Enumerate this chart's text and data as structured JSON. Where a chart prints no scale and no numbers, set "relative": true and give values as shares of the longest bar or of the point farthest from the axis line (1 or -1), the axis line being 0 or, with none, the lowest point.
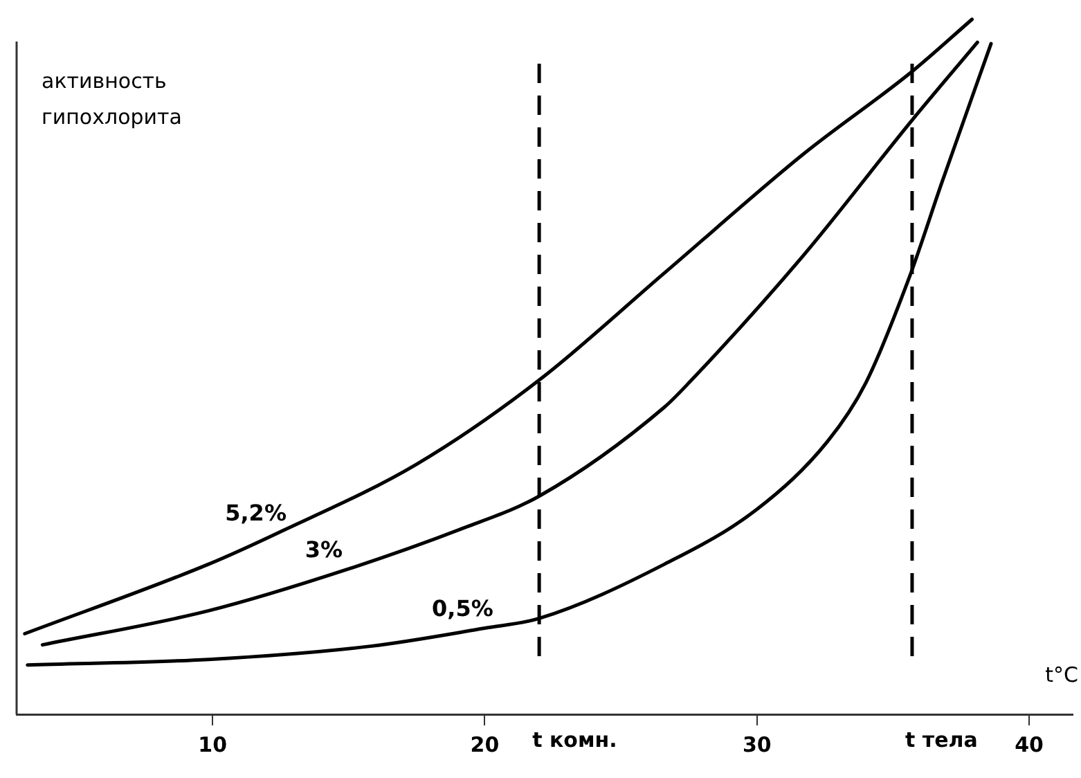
{
  "chart_data": {
    "type": "line",
    "relative": true,
    "xlabel": "t°C",
    "ylabel": "активность гипохлорита",
    "xlim": [
      2.8,
      41.6
    ],
    "xticks": [
      10,
      20,
      30,
      40
    ],
    "grid": false,
    "legend": false,
    "marker": "none",
    "line_style": "solid",
    "series": [
      {
        "name": "5,2%",
        "color": "#000000",
        "x": [
          3.1,
          9.85,
          12.4,
          17.5,
          22.0,
          26.6,
          31.7,
          35.7,
          37.9
        ],
        "values": [
          0.116,
          0.216,
          0.261,
          0.36,
          0.481,
          0.635,
          0.806,
          0.925,
          1.0
        ]
      },
      {
        "name": "3%",
        "color": "#000000",
        "x": [
          3.75,
          9.85,
          14.9,
          19.15,
          22.0,
          26.6,
          27.5,
          31.7,
          35.7,
          38.1
        ],
        "values": [
          0.1,
          0.149,
          0.208,
          0.267,
          0.314,
          0.442,
          0.477,
          0.66,
          0.855,
          0.967
        ]
      },
      {
        "name": "0,5%",
        "color": "#000000",
        "x": [
          3.2,
          9.85,
          15.8,
          20.0,
          22.0,
          26.6,
          30.0,
          32.6,
          34.0,
          35.6,
          36.8,
          38.6
        ],
        "values": [
          0.071,
          0.079,
          0.098,
          0.124,
          0.138,
          0.216,
          0.295,
          0.393,
          0.477,
          0.629,
          0.766,
          0.965
        ]
      }
    ],
    "ref_lines": [
      {
        "axis": "x",
        "value": 22,
        "label": "t комн.",
        "line_style": "dashed",
        "color": "#000000"
      },
      {
        "axis": "x",
        "value": 35.7,
        "label": "t тела",
        "line_style": "dashed",
        "color": "#000000"
      }
    ]
  }
}
